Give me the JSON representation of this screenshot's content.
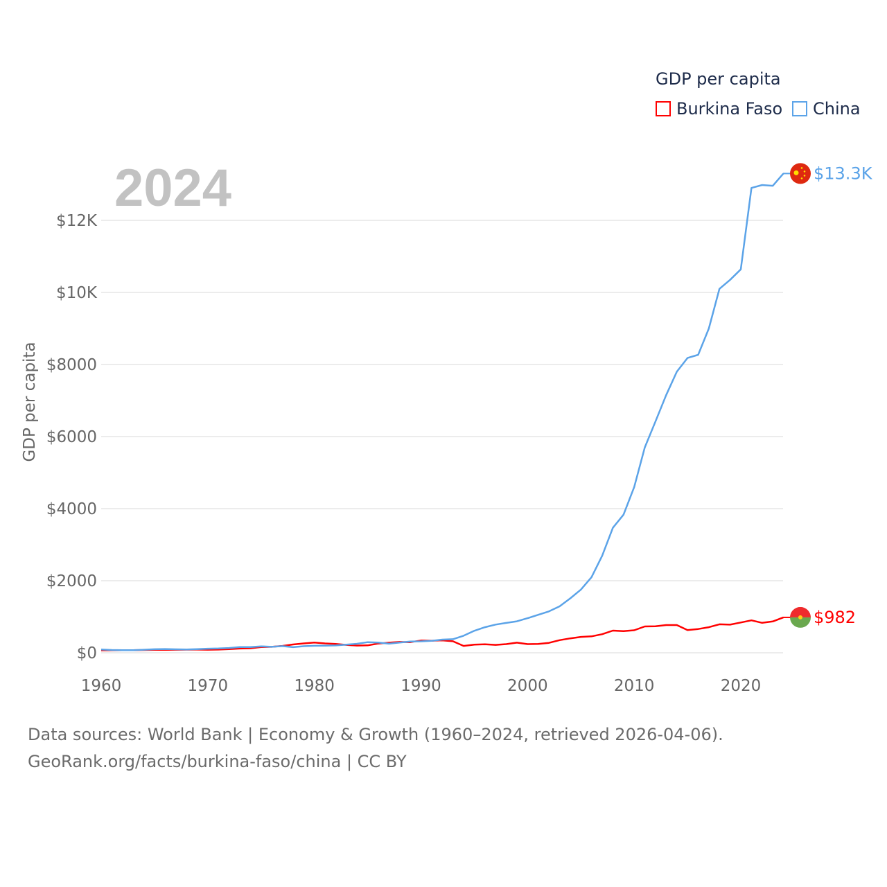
{
  "chart_data": {
    "type": "line",
    "title": "2024",
    "legend_title": "GDP per capita",
    "legend_position": "top-right",
    "ylabel": "GDP per capita",
    "xlabel": "",
    "xlim": [
      1960,
      2024
    ],
    "ylim": [
      0,
      13300
    ],
    "grid": true,
    "x_ticks": [
      1960,
      1970,
      1980,
      1990,
      2000,
      2010,
      2020
    ],
    "x_tick_labels": [
      "1960",
      "1970",
      "1980",
      "1990",
      "2000",
      "2010",
      "2020"
    ],
    "y_ticks": [
      0,
      2000,
      4000,
      6000,
      8000,
      10000,
      12000
    ],
    "y_tick_labels": [
      "$0",
      "$2000",
      "$4000",
      "$6000",
      "$8000",
      "$10K",
      "$12K"
    ],
    "x": [
      1960,
      1961,
      1962,
      1963,
      1964,
      1965,
      1966,
      1967,
      1968,
      1969,
      1970,
      1971,
      1972,
      1973,
      1974,
      1975,
      1976,
      1977,
      1978,
      1979,
      1980,
      1981,
      1982,
      1983,
      1984,
      1985,
      1986,
      1987,
      1988,
      1989,
      1990,
      1991,
      1992,
      1993,
      1994,
      1995,
      1996,
      1997,
      1998,
      1999,
      2000,
      2001,
      2002,
      2003,
      2004,
      2005,
      2006,
      2007,
      2008,
      2009,
      2010,
      2011,
      2012,
      2013,
      2014,
      2015,
      2016,
      2017,
      2018,
      2019,
      2020,
      2021,
      2022,
      2023,
      2024
    ],
    "series": [
      {
        "name": "Burkina Faso",
        "color": "#ff0000",
        "end_label": "$982",
        "values": [
          68,
          70,
          72,
          74,
          76,
          80,
          82,
          84,
          86,
          88,
          85,
          88,
          100,
          118,
          125,
          160,
          165,
          190,
          230,
          260,
          285,
          260,
          245,
          220,
          200,
          205,
          255,
          280,
          300,
          295,
          340,
          335,
          345,
          320,
          190,
          225,
          235,
          220,
          240,
          280,
          240,
          245,
          275,
          350,
          400,
          440,
          455,
          515,
          615,
          600,
          625,
          730,
          735,
          770,
          770,
          630,
          660,
          710,
          790,
          780,
          840,
          900,
          830,
          870,
          982
        ]
      },
      {
        "name": "China",
        "color": "#5ba3e8",
        "end_label": "$13.3K",
        "values": [
          90,
          76,
          71,
          74,
          85,
          98,
          104,
          97,
          91,
          100,
          113,
          119,
          132,
          157,
          160,
          178,
          165,
          185,
          156,
          183,
          195,
          197,
          203,
          225,
          250,
          294,
          282,
          252,
          284,
          311,
          318,
          333,
          366,
          377,
          473,
          610,
          709,
          782,
          829,
          873,
          959,
          1053,
          1149,
          1289,
          1509,
          1753,
          2099,
          2694,
          3468,
          3832,
          4600,
          5700,
          6420,
          7150,
          7800,
          8180,
          8270,
          9000,
          10100,
          10350,
          10640,
          12900,
          12980,
          12960,
          13300
        ]
      }
    ]
  },
  "footer": {
    "line1": "Data sources: World Bank | Economy & Growth (1960–2024, retrieved 2026-04-06).",
    "line2": "GeoRank.org/facts/burkina-faso/china | CC BY"
  }
}
